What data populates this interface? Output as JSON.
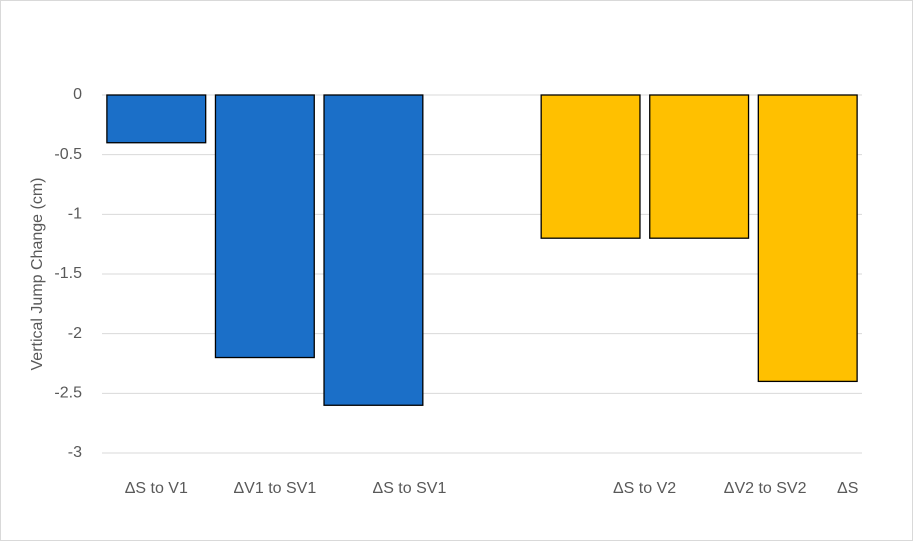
{
  "chart_data": {
    "type": "bar",
    "y_axis_label": "Vertical Jump Change (cm)",
    "categories": [
      "ΔS to V1",
      "ΔV1 to SV1",
      "ΔS to SV1",
      null,
      "ΔS to V2",
      "ΔV2 to SV2",
      "ΔS"
    ],
    "values": [
      -0.4,
      -2.2,
      -2.6,
      null,
      -1.2,
      -1.2,
      -2.4
    ],
    "colors": [
      "#1b6fc8",
      "#1b6fc8",
      "#1b6fc8",
      null,
      "#ffc000",
      "#ffc000",
      "#ffc000"
    ],
    "ylim": [
      -3,
      0
    ],
    "yticks": [
      0,
      -0.5,
      -1,
      -1.5,
      -2,
      -2.5,
      -3
    ],
    "grid": true
  }
}
